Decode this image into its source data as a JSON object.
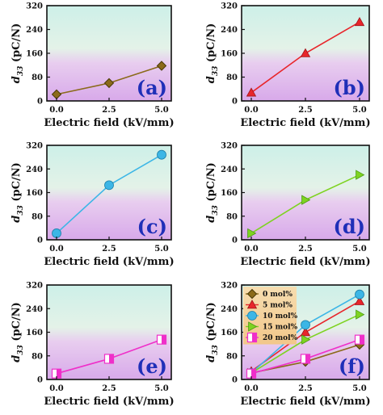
{
  "chart_data": [
    {
      "type": "line",
      "panel_label": "(a)",
      "xlabel": "Electric field (kV/mm)",
      "ylabel_main": "d",
      "ylabel_sub": "33",
      "ylabel_unit": " (pC/N)",
      "x": [
        0.0,
        2.5,
        5.0
      ],
      "x_ticks": [
        "0.0",
        "2.5",
        "5.0"
      ],
      "y_ticks": [
        "0",
        "80",
        "160",
        "240",
        "320"
      ],
      "ylim": [
        0,
        320
      ],
      "series": [
        {
          "values": [
            22,
            60,
            118
          ],
          "color": "#8b6a1a",
          "marker": "diamond"
        }
      ]
    },
    {
      "type": "line",
      "panel_label": "(b)",
      "xlabel": "Electric field (kV/mm)",
      "ylabel_main": "d",
      "ylabel_sub": "33",
      "ylabel_unit": " (pC/N)",
      "x": [
        0.0,
        2.5,
        5.0
      ],
      "x_ticks": [
        "0.0",
        "2.5",
        "5.0"
      ],
      "y_ticks": [
        "0",
        "80",
        "160",
        "240",
        "320"
      ],
      "ylim": [
        0,
        320
      ],
      "series": [
        {
          "values": [
            28,
            160,
            265
          ],
          "color": "#e8262b",
          "marker": "triangle-up"
        }
      ]
    },
    {
      "type": "line",
      "panel_label": "(c)",
      "xlabel": "Electric field (kV/mm)",
      "ylabel_main": "d",
      "ylabel_sub": "33",
      "ylabel_unit": " (pC/N)",
      "x": [
        0.0,
        2.5,
        5.0
      ],
      "x_ticks": [
        "0.0",
        "2.5",
        "5.0"
      ],
      "y_ticks": [
        "0",
        "80",
        "160",
        "240",
        "320"
      ],
      "ylim": [
        0,
        320
      ],
      "series": [
        {
          "values": [
            22,
            185,
            288
          ],
          "color": "#3cb6e6",
          "marker": "circle"
        }
      ]
    },
    {
      "type": "line",
      "panel_label": "(d)",
      "xlabel": "Electric field (kV/mm)",
      "ylabel_main": "d",
      "ylabel_sub": "33",
      "ylabel_unit": " (pC/N)",
      "x": [
        0.0,
        2.5,
        5.0
      ],
      "x_ticks": [
        "0.0",
        "2.5",
        "5.0"
      ],
      "y_ticks": [
        "0",
        "80",
        "160",
        "240",
        "320"
      ],
      "ylim": [
        0,
        320
      ],
      "series": [
        {
          "values": [
            22,
            135,
            220
          ],
          "color": "#7ed321",
          "marker": "triangle-right"
        }
      ]
    },
    {
      "type": "line",
      "panel_label": "(e)",
      "xlabel": "Electric field (kV/mm)",
      "ylabel_main": "d",
      "ylabel_sub": "33",
      "ylabel_unit": " (pC/N)",
      "x": [
        0.0,
        2.5,
        5.0
      ],
      "x_ticks": [
        "0.0",
        "2.5",
        "5.0"
      ],
      "y_ticks": [
        "0",
        "80",
        "160",
        "240",
        "320"
      ],
      "ylim": [
        0,
        320
      ],
      "series": [
        {
          "values": [
            20,
            70,
            135
          ],
          "color": "#ef2fc9",
          "marker": "half-square"
        }
      ]
    },
    {
      "type": "line",
      "panel_label": "(f)",
      "xlabel": "Electric field (kV/mm)",
      "ylabel_main": "d",
      "ylabel_sub": "33",
      "ylabel_unit": " (pC/N)",
      "x": [
        0.0,
        2.5,
        5.0
      ],
      "x_ticks": [
        "0.0",
        "2.5",
        "5.0"
      ],
      "y_ticks": [
        "0",
        "80",
        "160",
        "240",
        "320"
      ],
      "ylim": [
        0,
        320
      ],
      "legend_position": "top-left",
      "series": [
        {
          "name": "0 mol%",
          "values": [
            22,
            60,
            118
          ],
          "color": "#8b6a1a",
          "marker": "diamond"
        },
        {
          "name": "5 mol%",
          "values": [
            28,
            160,
            265
          ],
          "color": "#e8262b",
          "marker": "triangle-up"
        },
        {
          "name": "10 mol%",
          "values": [
            22,
            185,
            288
          ],
          "color": "#3cb6e6",
          "marker": "circle"
        },
        {
          "name": "15 mol%",
          "values": [
            22,
            135,
            220
          ],
          "color": "#7ed321",
          "marker": "triangle-right"
        },
        {
          "name": "20 mol%",
          "values": [
            20,
            70,
            135
          ],
          "color": "#ef2fc9",
          "marker": "half-square"
        }
      ]
    }
  ]
}
